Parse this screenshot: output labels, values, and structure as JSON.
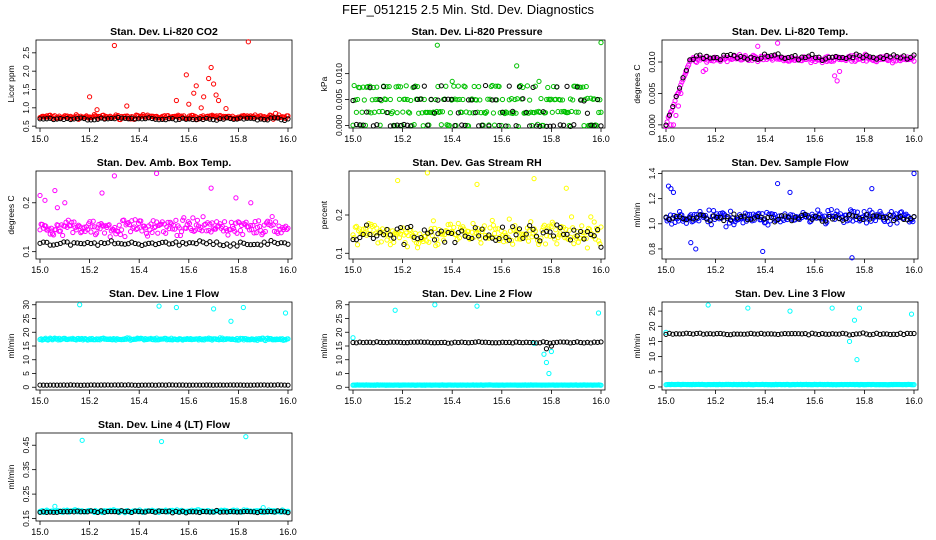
{
  "title": "FEF_051215  2.5 Min. Std. Dev. Diagnostics",
  "chart_data": [
    {
      "type": "scatter",
      "title": "Stan. Dev. Li-820 CO2",
      "ylabel": "Licor ppm",
      "xlim": [
        15.0,
        16.0
      ],
      "xticks": [
        15.0,
        15.2,
        15.4,
        15.6,
        15.8,
        16.0
      ],
      "ylim": [
        0.45,
        2.85
      ],
      "yticks": [
        0.5,
        1.0,
        1.5,
        2.0,
        2.5
      ],
      "series": [
        {
          "color": "#ff0000",
          "base": 0.75,
          "spread": 0.08,
          "outliers": [
            [
              15.2,
              1.3
            ],
            [
              15.23,
              0.95
            ],
            [
              15.3,
              2.7
            ],
            [
              15.35,
              1.05
            ],
            [
              15.55,
              1.2
            ],
            [
              15.59,
              1.9
            ],
            [
              15.6,
              1.1
            ],
            [
              15.62,
              1.4
            ],
            [
              15.63,
              1.6
            ],
            [
              15.65,
              1.0
            ],
            [
              15.66,
              1.3
            ],
            [
              15.68,
              1.8
            ],
            [
              15.69,
              2.1
            ],
            [
              15.7,
              1.65
            ],
            [
              15.71,
              1.35
            ],
            [
              15.72,
              1.2
            ],
            [
              15.75,
              0.98
            ],
            [
              15.84,
              2.8
            ],
            [
              15.95,
              0.85
            ]
          ]
        },
        {
          "color": "#000000",
          "base": 0.7,
          "spread": 0.05,
          "every": 3,
          "outliers": []
        }
      ]
    },
    {
      "type": "scatter",
      "title": "Stan. Dev. Li-820 Pressure",
      "ylabel": "kPa",
      "xlim": [
        15.0,
        16.0
      ],
      "xticks": [
        15.0,
        15.2,
        15.4,
        15.6,
        15.8,
        16.0
      ],
      "ylim": [
        -0.0005,
        0.0165
      ],
      "yticks": [
        0.0,
        0.005,
        0.01
      ],
      "series": [
        {
          "color": "#00c000",
          "levels": [
            0.0,
            0.0025,
            0.005,
            0.0075
          ],
          "weights": [
            0.12,
            0.38,
            0.32,
            0.18
          ],
          "outliers": [
            [
              15.34,
              0.0155
            ],
            [
              15.66,
              0.0115
            ],
            [
              16.0,
              0.016
            ],
            [
              15.4,
              0.0085
            ],
            [
              15.75,
              0.0085
            ]
          ]
        },
        {
          "color": "#000000",
          "levels": [
            0.0,
            0.0025,
            0.005,
            0.0075
          ],
          "weights": [
            0.5,
            0.2,
            0.15,
            0.15
          ],
          "every": 3,
          "outliers": []
        }
      ]
    },
    {
      "type": "scatter",
      "title": "Stan. Dev. Li-820 Temp.",
      "ylabel": "degrees C",
      "xlim": [
        15.0,
        16.0
      ],
      "xticks": [
        15.0,
        15.2,
        15.4,
        15.6,
        15.8,
        16.0
      ],
      "ylim": [
        -0.0005,
        0.0135
      ],
      "yticks": [
        0.0,
        0.005,
        0.01
      ],
      "series": [
        {
          "color": "#ff00ff",
          "base": 0.0105,
          "spread": 0.0008,
          "rampEnd": 15.1,
          "outliers": [
            [
              15.02,
              0.0
            ],
            [
              15.03,
              0.0
            ],
            [
              15.04,
              0.0015
            ],
            [
              15.05,
              0.003
            ],
            [
              15.06,
              0.005
            ],
            [
              15.08,
              0.0085
            ],
            [
              15.15,
              0.0085
            ],
            [
              15.16,
              0.0088
            ],
            [
              15.68,
              0.0078
            ],
            [
              15.69,
              0.007
            ],
            [
              15.7,
              0.0085
            ],
            [
              15.45,
              0.013
            ],
            [
              15.37,
              0.0125
            ]
          ]
        },
        {
          "color": "#000000",
          "base": 0.0108,
          "spread": 0.0007,
          "every": 3,
          "rampEnd": 15.1,
          "outliers": []
        }
      ]
    },
    {
      "type": "scatter",
      "title": "Stan. Dev. Amb. Box Temp.",
      "ylabel": "degrees C",
      "xlim": [
        15.0,
        16.0
      ],
      "xticks": [
        15.0,
        15.2,
        15.4,
        15.6,
        15.8,
        16.0
      ],
      "ylim": [
        0.085,
        0.265
      ],
      "yticks": [
        0.1,
        0.2
      ],
      "series": [
        {
          "color": "#ff00ff",
          "base": 0.15,
          "spread": 0.025,
          "outliers": [
            [
              15.0,
              0.215
            ],
            [
              15.02,
              0.205
            ],
            [
              15.06,
              0.225
            ],
            [
              15.07,
              0.19
            ],
            [
              15.1,
              0.2
            ],
            [
              15.25,
              0.22
            ],
            [
              15.3,
              0.255
            ],
            [
              15.47,
              0.26
            ],
            [
              15.69,
              0.23
            ],
            [
              15.79,
              0.21
            ],
            [
              15.85,
              0.2
            ]
          ]
        },
        {
          "color": "#000000",
          "base": 0.117,
          "spread": 0.008,
          "every": 3,
          "outliers": []
        }
      ]
    },
    {
      "type": "scatter",
      "title": "Stan. Dev. Gas Stream RH",
      "ylabel": "percent",
      "xlim": [
        15.0,
        16.0
      ],
      "xticks": [
        15.0,
        15.2,
        15.4,
        15.6,
        15.8,
        16.0
      ],
      "ylim": [
        0.085,
        0.315
      ],
      "yticks": [
        0.1,
        0.2
      ],
      "series": [
        {
          "color": "#ffff00",
          "base": 0.15,
          "spread": 0.05,
          "outliers": [
            [
              15.3,
              0.31
            ],
            [
              15.18,
              0.29
            ],
            [
              15.73,
              0.295
            ],
            [
              15.5,
              0.28
            ],
            [
              15.86,
              0.27
            ]
          ]
        },
        {
          "color": "#000000",
          "base": 0.15,
          "spread": 0.04,
          "every": 3,
          "outliers": []
        }
      ]
    },
    {
      "type": "scatter",
      "title": "Stan. Dev. Sample Flow",
      "ylabel": "ml/min",
      "xlim": [
        15.0,
        16.0
      ],
      "xticks": [
        15.0,
        15.2,
        15.4,
        15.6,
        15.8,
        16.0
      ],
      "ylim": [
        0.72,
        1.42
      ],
      "yticks": [
        0.8,
        1.0,
        1.2,
        1.4
      ],
      "series": [
        {
          "color": "#0000ff",
          "base": 1.05,
          "spread": 0.08,
          "outliers": [
            [
              15.01,
              1.3
            ],
            [
              15.02,
              1.28
            ],
            [
              15.03,
              1.25
            ],
            [
              15.1,
              0.85
            ],
            [
              15.12,
              0.8
            ],
            [
              15.39,
              0.78
            ],
            [
              15.45,
              1.32
            ],
            [
              15.5,
              1.25
            ],
            [
              15.75,
              0.73
            ],
            [
              15.83,
              1.28
            ],
            [
              16.0,
              1.4
            ]
          ]
        },
        {
          "color": "#000000",
          "base": 1.05,
          "spread": 0.04,
          "every": 3,
          "outliers": []
        }
      ]
    },
    {
      "type": "scatter",
      "title": "Stan. Dev. Line 1 Flow",
      "ylabel": "ml/min",
      "xlim": [
        15.0,
        16.0
      ],
      "xticks": [
        15.0,
        15.2,
        15.4,
        15.6,
        15.8,
        16.0
      ],
      "ylim": [
        -1,
        31
      ],
      "yticks": [
        0,
        5,
        10,
        15,
        20,
        25,
        30
      ],
      "series": [
        {
          "color": "#00ffff",
          "base": 17.5,
          "spread": 0.6,
          "outliers": [
            [
              15.16,
              30
            ],
            [
              15.48,
              29.5
            ],
            [
              15.55,
              29
            ],
            [
              15.7,
              28.5
            ],
            [
              15.77,
              24
            ],
            [
              15.82,
              29
            ],
            [
              15.99,
              27
            ]
          ]
        },
        {
          "color": "#000000",
          "base": 0.8,
          "spread": 0.1,
          "every": 3,
          "outliers": []
        }
      ]
    },
    {
      "type": "scatter",
      "title": "Stan. Dev. Line 2 Flow",
      "ylabel": "ml/min",
      "xlim": [
        15.0,
        16.0
      ],
      "xticks": [
        15.0,
        15.2,
        15.4,
        15.6,
        15.8,
        16.0
      ],
      "ylim": [
        -1,
        31
      ],
      "yticks": [
        0,
        5,
        10,
        15,
        20,
        25,
        30
      ],
      "series": [
        {
          "color": "#00ffff",
          "base": 0.8,
          "spread": 0.1,
          "outliers": [
            [
              15.0,
              18
            ],
            [
              15.17,
              28
            ],
            [
              15.33,
              30
            ],
            [
              15.5,
              29.5
            ],
            [
              15.73,
              16
            ],
            [
              15.77,
              12
            ],
            [
              15.78,
              9
            ],
            [
              15.79,
              5
            ],
            [
              15.8,
              13
            ],
            [
              15.99,
              27
            ]
          ]
        },
        {
          "color": "#000000",
          "base": 16.3,
          "spread": 0.4,
          "every": 3,
          "outliers": [
            [
              15.78,
              14
            ],
            [
              15.8,
              15
            ]
          ]
        }
      ]
    },
    {
      "type": "scatter",
      "title": "Stan. Dev. Line 3 Flow",
      "ylabel": "ml/min",
      "xlim": [
        15.0,
        16.0
      ],
      "xticks": [
        15.0,
        15.2,
        15.4,
        15.6,
        15.8,
        16.0
      ],
      "ylim": [
        -1,
        28
      ],
      "yticks": [
        0,
        5,
        10,
        15,
        20,
        25
      ],
      "series": [
        {
          "color": "#00ffff",
          "base": 0.8,
          "spread": 0.1,
          "outliers": [
            [
              15.0,
              18
            ],
            [
              15.17,
              27
            ],
            [
              15.33,
              26
            ],
            [
              15.5,
              25
            ],
            [
              15.67,
              26
            ],
            [
              15.74,
              15
            ],
            [
              15.76,
              22
            ],
            [
              15.77,
              9
            ],
            [
              15.78,
              26
            ],
            [
              15.99,
              24
            ]
          ]
        },
        {
          "color": "#000000",
          "base": 17.5,
          "spread": 0.4,
          "every": 3,
          "outliers": []
        }
      ]
    },
    {
      "type": "scatter",
      "title": "Stan. Dev. Line 4 (LT) Flow",
      "ylabel": "ml/min",
      "xlim": [
        15.0,
        16.0
      ],
      "xticks": [
        15.0,
        15.2,
        15.4,
        15.6,
        15.8,
        16.0
      ],
      "ylim": [
        0.14,
        0.5
      ],
      "yticks": [
        0.15,
        0.25,
        0.35,
        0.45
      ],
      "series": [
        {
          "color": "#00ffff",
          "base": 0.18,
          "spread": 0.008,
          "outliers": [
            [
              15.17,
              0.47
            ],
            [
              15.49,
              0.465
            ],
            [
              15.83,
              0.485
            ],
            [
              15.06,
              0.2
            ],
            [
              15.9,
              0.195
            ]
          ]
        },
        {
          "color": "#000000",
          "base": 0.178,
          "spread": 0.006,
          "every": 3,
          "outliers": []
        }
      ]
    }
  ]
}
